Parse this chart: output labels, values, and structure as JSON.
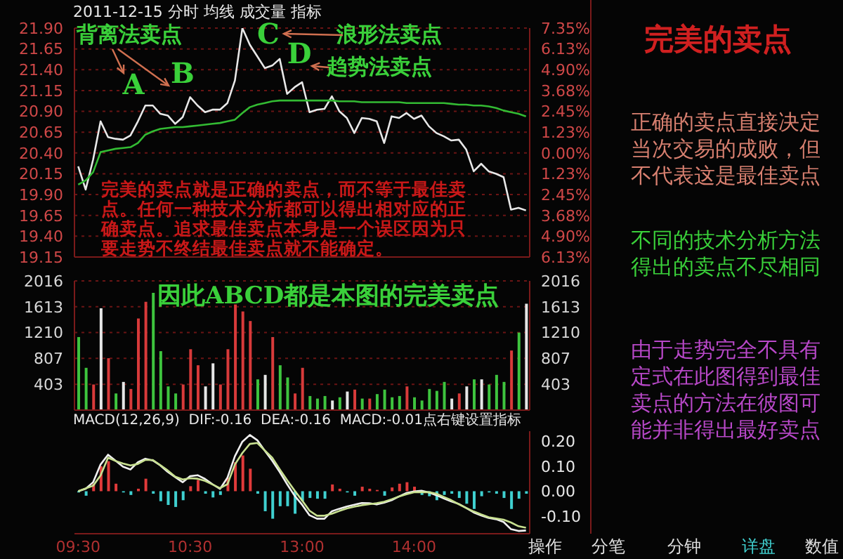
{
  "chart_data": [
    {
      "type": "line",
      "title": "2011-12-15 分时 均线 成交量 指标",
      "categories": [
        null,
        null,
        null,
        null,
        null,
        null,
        null,
        null,
        null,
        null,
        null,
        null,
        null,
        null,
        null,
        null,
        null,
        null,
        null,
        null,
        null,
        null,
        null,
        null,
        null,
        null,
        null,
        null,
        null,
        null,
        null,
        null,
        null,
        null,
        null,
        null,
        null,
        null,
        null,
        null,
        null,
        null,
        null,
        null,
        null,
        null,
        null,
        null,
        null,
        null,
        null,
        null,
        null,
        null,
        null,
        null,
        null,
        null,
        null,
        null,
        null
      ],
      "ylim": [
        19.15,
        21.9
      ],
      "yticks": [
        {
          "value": 19.15,
          "label": "19.15"
        },
        {
          "value": 19.4,
          "label": "19.40"
        },
        {
          "value": 19.65,
          "label": "19.65"
        },
        {
          "value": 19.9,
          "label": "19.90"
        },
        {
          "value": 20.15,
          "label": "20.15"
        },
        {
          "value": 20.4,
          "label": "20.40"
        },
        {
          "value": 20.65,
          "label": "20.65"
        },
        {
          "value": 20.9,
          "label": "20.90"
        },
        {
          "value": 21.15,
          "label": "21.15"
        },
        {
          "value": 21.4,
          "label": "21.40"
        },
        {
          "value": 21.65,
          "label": "21.65"
        },
        {
          "value": 21.9,
          "label": "21.90"
        }
      ],
      "y2lim": [
        -6.13,
        7.35
      ],
      "y2ticks": [
        {
          "value": -6.13,
          "label": "6.13%"
        },
        {
          "value": -4.9,
          "label": "4.90%"
        },
        {
          "value": -3.68,
          "label": "3.68%"
        },
        {
          "value": -2.45,
          "label": "2.45%"
        },
        {
          "value": -1.23,
          "label": "1.23%"
        },
        {
          "value": 0,
          "label": "0.00%"
        },
        {
          "value": 1.23,
          "label": "1.23%"
        },
        {
          "value": 2.45,
          "label": "2.45%"
        },
        {
          "value": 3.68,
          "label": "3.68%"
        },
        {
          "value": 4.9,
          "label": "4.90%"
        },
        {
          "value": 6.13,
          "label": "6.13%"
        },
        {
          "value": 7.35,
          "label": "7.35%"
        }
      ],
      "grid": "y",
      "tick_labels": "y",
      "series": [
        {
          "color": "#e8e8e8",
          "values": [
            20.24,
            19.96,
            20.32,
            20.78,
            20.59,
            20.57,
            20.56,
            20.61,
            20.78,
            20.97,
            20.97,
            20.87,
            20.85,
            20.75,
            20.83,
            21.07,
            20.97,
            20.89,
            20.92,
            20.92,
            21.0,
            21.27,
            21.9,
            21.7,
            21.56,
            21.42,
            21.45,
            21.53,
            21.11,
            21.19,
            21.25,
            20.89,
            20.92,
            20.93,
            21.08,
            20.9,
            20.82,
            20.64,
            20.82,
            20.81,
            20.78,
            20.52,
            20.84,
            20.82,
            20.88,
            20.81,
            20.85,
            20.72,
            20.64,
            20.6,
            20.55,
            20.56,
            20.44,
            20.18,
            20.27,
            20.18,
            20.15,
            20.11,
            19.72,
            19.74,
            19.71
          ]
        },
        {
          "color": "#33bb33",
          "values": [
            20.02,
            20.07,
            20.17,
            20.41,
            20.43,
            20.45,
            20.46,
            20.47,
            20.52,
            20.62,
            20.66,
            20.69,
            20.7,
            20.71,
            20.71,
            20.72,
            20.73,
            20.74,
            20.75,
            20.76,
            20.78,
            20.8,
            20.88,
            20.95,
            20.98,
            21.0,
            21.02,
            21.03,
            21.03,
            21.03,
            21.03,
            21.03,
            21.03,
            21.03,
            21.03,
            21.02,
            21.02,
            21.02,
            21.01,
            21.01,
            21.01,
            21.01,
            21.01,
            21.01,
            21.0,
            21.0,
            21.0,
            21.0,
            21.0,
            21.0,
            20.99,
            20.98,
            20.98,
            20.97,
            20.97,
            20.96,
            20.94,
            20.91,
            20.89,
            20.87,
            20.84
          ]
        }
      ],
      "annotations": [
        "背离法卖点",
        "A",
        "B",
        "C",
        "D",
        "浪形法卖点",
        "趋势法卖点",
        "完美的卖点就是正确的卖点，而不等于最佳卖点。任何一种技术分析都可以得出相对应的正确卖点。追求最佳卖点本身是一个误区因为只要走势不终结最佳卖点就不能确定。"
      ]
    },
    {
      "type": "bar",
      "categories": [
        null,
        null,
        null,
        null,
        null,
        null,
        null,
        null,
        null,
        null,
        null,
        null,
        null,
        null,
        null,
        null,
        null,
        null,
        null,
        null,
        null,
        null,
        null,
        null,
        null,
        null,
        null,
        null,
        null,
        null,
        null,
        null,
        null,
        null,
        null,
        null,
        null,
        null,
        null,
        null,
        null,
        null,
        null,
        null,
        null,
        null,
        null,
        null,
        null,
        null,
        null,
        null,
        null,
        null,
        null,
        null,
        null,
        null,
        null,
        null,
        null
      ],
      "ylim": [
        0,
        2016
      ],
      "yticks": [
        403,
        807,
        1210,
        1613,
        2016
      ],
      "y2lim": [
        0,
        2016
      ],
      "y2ticks": [
        403,
        807,
        1210,
        1613,
        2016
      ],
      "grid": "y",
      "tick_labels": "y",
      "values": [
        1140,
        660,
        400,
        1590,
        810,
        260,
        440,
        330,
        1430,
        1690,
        1830,
        920,
        370,
        260,
        400,
        950,
        700,
        370,
        730,
        400,
        950,
        1650,
        1540,
        1390,
        480,
        550,
        1140,
        700,
        510,
        260,
        660,
        220,
        180,
        220,
        150,
        200,
        290,
        320,
        180,
        180,
        250,
        320,
        200,
        220,
        370,
        200,
        150,
        330,
        300,
        440,
        180,
        260,
        370,
        480,
        480,
        400,
        550,
        440,
        930,
        1210,
        1660
      ],
      "colors": [
        "#3ec43e",
        "#3ec43e",
        "#d83a3a",
        "#e6e6e6",
        "#d83a3a",
        "#3ec43e",
        "#e6e6e6",
        "#d83a3a",
        "#d83a3a",
        "#d83a3a",
        "#3ec43e",
        "#3ec43e",
        "#3ec43e",
        "#3ec43e",
        "#d83a3a",
        "#d83a3a",
        "#d83a3a",
        "#e6e6e6",
        "#e6e6e6",
        "#d83a3a",
        "#d83a3a",
        "#d83a3a",
        "#d83a3a",
        "#d83a3a",
        "#3ec43e",
        "#e6e6e6",
        "#d83a3a",
        "#3ec43e",
        "#3ec43e",
        "#d83a3a",
        "#d83a3a",
        "#3ec43e",
        "#3ec43e",
        "#3ec43e",
        "#e6e6e6",
        "#3ec43e",
        "#e6e6e6",
        "#d83a3a",
        "#3ec43e",
        "#d83a3a",
        "#3ec43e",
        "#3ec43e",
        "#3ec43e",
        "#3ec43e",
        "#d83a3a",
        "#3ec43e",
        "#3ec43e",
        "#3ec43e",
        "#3ec43e",
        "#3ec43e",
        "#e6e6e6",
        "#d83a3a",
        "#e6e6e6",
        "#3ec43e",
        "#e6e6e6",
        "#3ec43e",
        "#3ec43e",
        "#3ec43e",
        "#d83a3a",
        "#3ec43e",
        "#e6e6e6"
      ],
      "annotations": [
        "因此ABCD都是本图的完美卖点"
      ]
    },
    {
      "type": "line",
      "title": "MACD(12,26,9)  DIF:-0.16  DEA:-0.16  MACD:-0.01点右键设置指标",
      "categories": [
        "09:30",
        null,
        null,
        null,
        null,
        null,
        null,
        null,
        null,
        null,
        null,
        null,
        null,
        null,
        null,
        "10:30",
        null,
        null,
        null,
        null,
        null,
        null,
        null,
        null,
        null,
        null,
        null,
        null,
        null,
        null,
        "13:00",
        null,
        null,
        null,
        null,
        null,
        null,
        null,
        null,
        null,
        null,
        null,
        null,
        null,
        null,
        "14:00",
        null,
        null,
        null,
        null,
        null,
        null,
        null,
        null,
        null,
        null,
        null,
        null,
        null,
        null,
        null
      ],
      "y2lim": [
        -0.17,
        0.24
      ],
      "y2ticks": [
        {
          "value": -0.1,
          "label": "-0.10"
        },
        {
          "value": 0,
          "label": "0.00"
        },
        {
          "value": 0.1,
          "label": "0.10"
        },
        {
          "value": 0.2,
          "label": "0.20"
        }
      ],
      "series": [
        {
          "type": "bar",
          "axis": "y2",
          "values": [
            -0.005,
            -0.018,
            0.03,
            0.1,
            0.12,
            0.03,
            -0.005,
            -0.015,
            0.01,
            0.05,
            -0.01,
            -0.04,
            -0.055,
            -0.063,
            -0.036,
            0.02,
            0.045,
            -0.01,
            -0.025,
            -0.015,
            0.054,
            0.116,
            0.143,
            0.09,
            -0.01,
            -0.08,
            -0.11,
            -0.06,
            -0.06,
            -0.09,
            -0.04,
            -0.027,
            -0.03,
            -0.03,
            0.027,
            0.01,
            -0.005,
            -0.018,
            0.018,
            0.01,
            0.005,
            -0.018,
            0.015,
            0.03,
            0.036,
            0.018,
            -0.015,
            -0.02,
            -0.036,
            -0.015,
            -0.01,
            -0.027,
            -0.05,
            -0.071,
            -0.02,
            -0.005,
            -0.01,
            -0.027,
            -0.071,
            -0.03,
            -0.01
          ],
          "colors": [
            "#3fd0d0",
            "#3fd0d0",
            "#e03a3a",
            "#e03a3a",
            "#e03a3a",
            "#e03a3a",
            "#3fd0d0",
            "#3fd0d0",
            "#e03a3a",
            "#e03a3a",
            "#3fd0d0",
            "#3fd0d0",
            "#3fd0d0",
            "#3fd0d0",
            "#3fd0d0",
            "#e03a3a",
            "#e03a3a",
            "#3fd0d0",
            "#3fd0d0",
            "#3fd0d0",
            "#e03a3a",
            "#e03a3a",
            "#e03a3a",
            "#e03a3a",
            "#3fd0d0",
            "#3fd0d0",
            "#3fd0d0",
            "#3fd0d0",
            "#3fd0d0",
            "#3fd0d0",
            "#3fd0d0",
            "#3fd0d0",
            "#3fd0d0",
            "#3fd0d0",
            "#e03a3a",
            "#e03a3a",
            "#3fd0d0",
            "#3fd0d0",
            "#e03a3a",
            "#e03a3a",
            "#e03a3a",
            "#3fd0d0",
            "#e03a3a",
            "#e03a3a",
            "#e03a3a",
            "#e03a3a",
            "#3fd0d0",
            "#3fd0d0",
            "#3fd0d0",
            "#3fd0d0",
            "#3fd0d0",
            "#3fd0d0",
            "#3fd0d0",
            "#3fd0d0",
            "#3fd0d0",
            "#3fd0d0",
            "#3fd0d0",
            "#3fd0d0",
            "#3fd0d0",
            "#3fd0d0",
            "#3fd0d0"
          ]
        },
        {
          "axis": "y2",
          "color": "#f0f0f0",
          "values": [
            0,
            0.01,
            0.036,
            0.107,
            0.146,
            0.122,
            0.098,
            0.087,
            0.116,
            0.13,
            0.123,
            0.103,
            0.077,
            0.056,
            0.036,
            0.06,
            0.064,
            0.049,
            0.028,
            0.009,
            0.054,
            0.14,
            0.198,
            0.225,
            0.204,
            0.162,
            0.122,
            0.077,
            0.028,
            -0.018,
            -0.054,
            -0.096,
            -0.11,
            -0.11,
            -0.08,
            -0.07,
            -0.061,
            -0.054,
            -0.047,
            -0.048,
            -0.053,
            -0.046,
            -0.036,
            -0.021,
            -0.007,
            -0.001,
            0.002,
            -0.005,
            -0.016,
            -0.029,
            -0.041,
            -0.051,
            -0.067,
            -0.085,
            -0.097,
            -0.107,
            -0.112,
            -0.123,
            -0.152,
            -0.159,
            -0.157
          ]
        },
        {
          "axis": "y2",
          "color": "#c8e090",
          "values": [
            0,
            0.011,
            0.022,
            0.063,
            0.134,
            0.121,
            0.111,
            0.103,
            0.109,
            0.125,
            0.125,
            0.104,
            0.083,
            0.058,
            0.047,
            0.052,
            0.05,
            0.041,
            0.027,
            0.012,
            0.028,
            0.107,
            0.153,
            0.189,
            0.193,
            0.163,
            0.134,
            0.088,
            0.044,
            0.003,
            -0.037,
            -0.078,
            -0.098,
            -0.098,
            -0.09,
            -0.079,
            -0.069,
            -0.062,
            -0.056,
            -0.052,
            -0.048,
            -0.042,
            -0.032,
            -0.021,
            -0.012,
            -0.004,
            -0.004,
            -0.004,
            -0.01,
            -0.023,
            -0.036,
            -0.052,
            -0.067,
            -0.081,
            -0.093,
            -0.104,
            -0.109,
            -0.114,
            -0.125,
            -0.14,
            -0.146
          ]
        }
      ]
    },
    {
      "type": "other",
      "title": "完美的卖点",
      "annotations": [
        "正确的卖点直接决定当次交易的成败，但不代表这是最佳卖点",
        "不同的技术分析方法得出的卖点不尽相同",
        "由于走势完全不具有定式在此图得到最佳卖点的方法在彼图可能并非得出最好卖点",
        "操作",
        "分笔",
        "分钟",
        "详盘",
        "数值"
      ]
    }
  ]
}
